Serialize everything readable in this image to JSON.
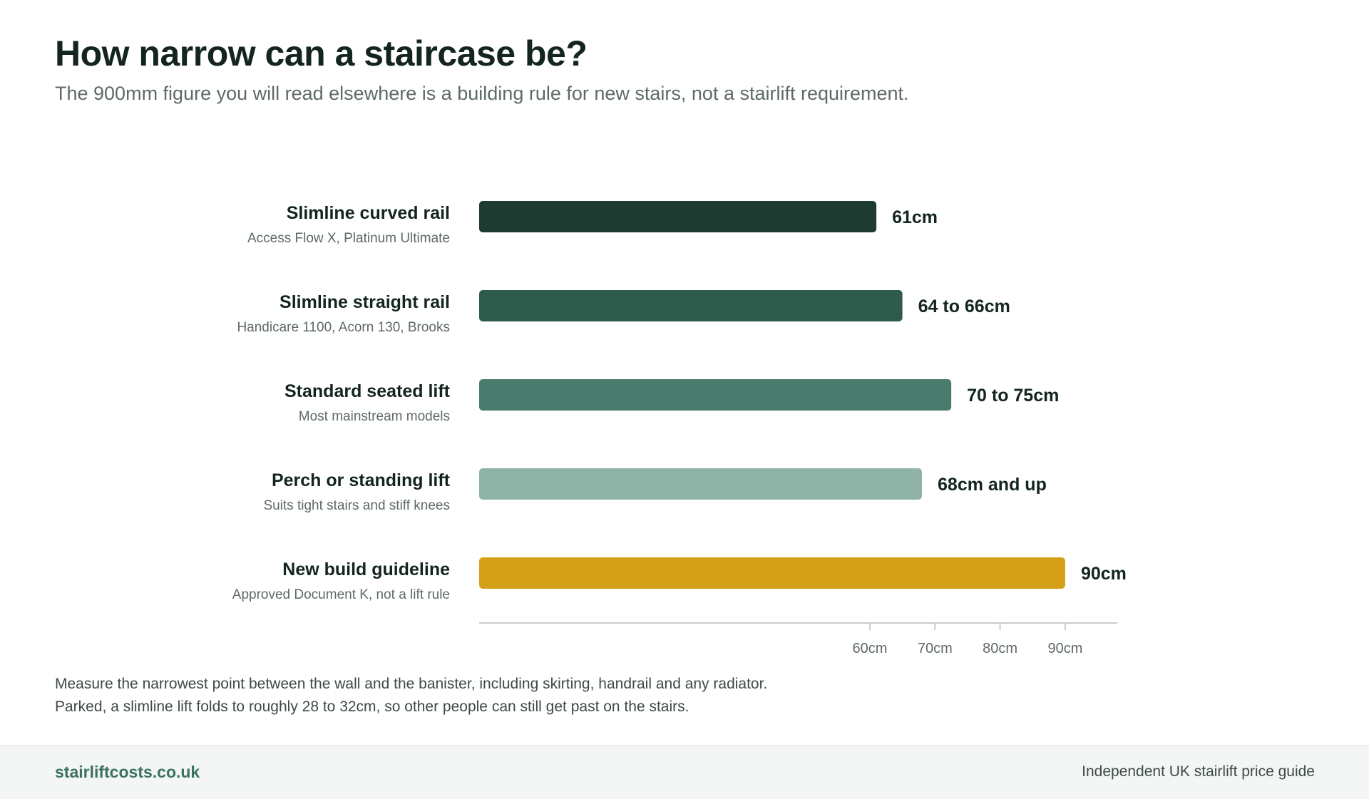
{
  "header": {
    "title": "How narrow can a staircase be?",
    "subtitle": "The 900mm figure you will read elsewhere is a building rule for new stairs, not a stairlift requirement."
  },
  "chart_data": {
    "type": "bar",
    "orientation": "horizontal",
    "categories": [
      "Slimline curved rail",
      "Slimline straight rail",
      "Standard seated lift",
      "Perch or standing lift",
      "New build guideline"
    ],
    "sublabels": [
      "Access Flow X, Platinum Ultimate",
      "Handicare 1100, Acorn 130, Brooks",
      "Most mainstream models",
      "Suits tight stairs and stiff knees",
      "Approved Document K, not a lift rule"
    ],
    "values": [
      61,
      65,
      72.5,
      68,
      90
    ],
    "value_labels": [
      "61cm",
      "64 to 66cm",
      "70 to 75cm",
      "68cm and up",
      "90cm"
    ],
    "bar_colors": [
      "#1e3b31",
      "#2e5c4c",
      "#4a7c6d",
      "#8fb3a7",
      "#d4a017"
    ],
    "x_ticks": [
      60,
      70,
      80,
      90
    ],
    "x_tick_labels": [
      "60cm",
      "70cm",
      "80cm",
      "90cm"
    ],
    "xlim": [
      0,
      98
    ],
    "grid": false,
    "legend": "none"
  },
  "notes": [
    "Measure the narrowest point between the wall and the banister, including skirting, handrail and any radiator.",
    "Parked, a slimline lift folds to roughly 28 to 32cm, so other people can still get past on the stairs."
  ],
  "footer": {
    "brand": "stairliftcosts.co.uk",
    "tagline": "Independent UK stairlift price guide"
  },
  "colors": {
    "title": "#13251e",
    "subtitle": "#5d6a65",
    "axis": "#c9cecc",
    "brand": "#3a725c"
  }
}
